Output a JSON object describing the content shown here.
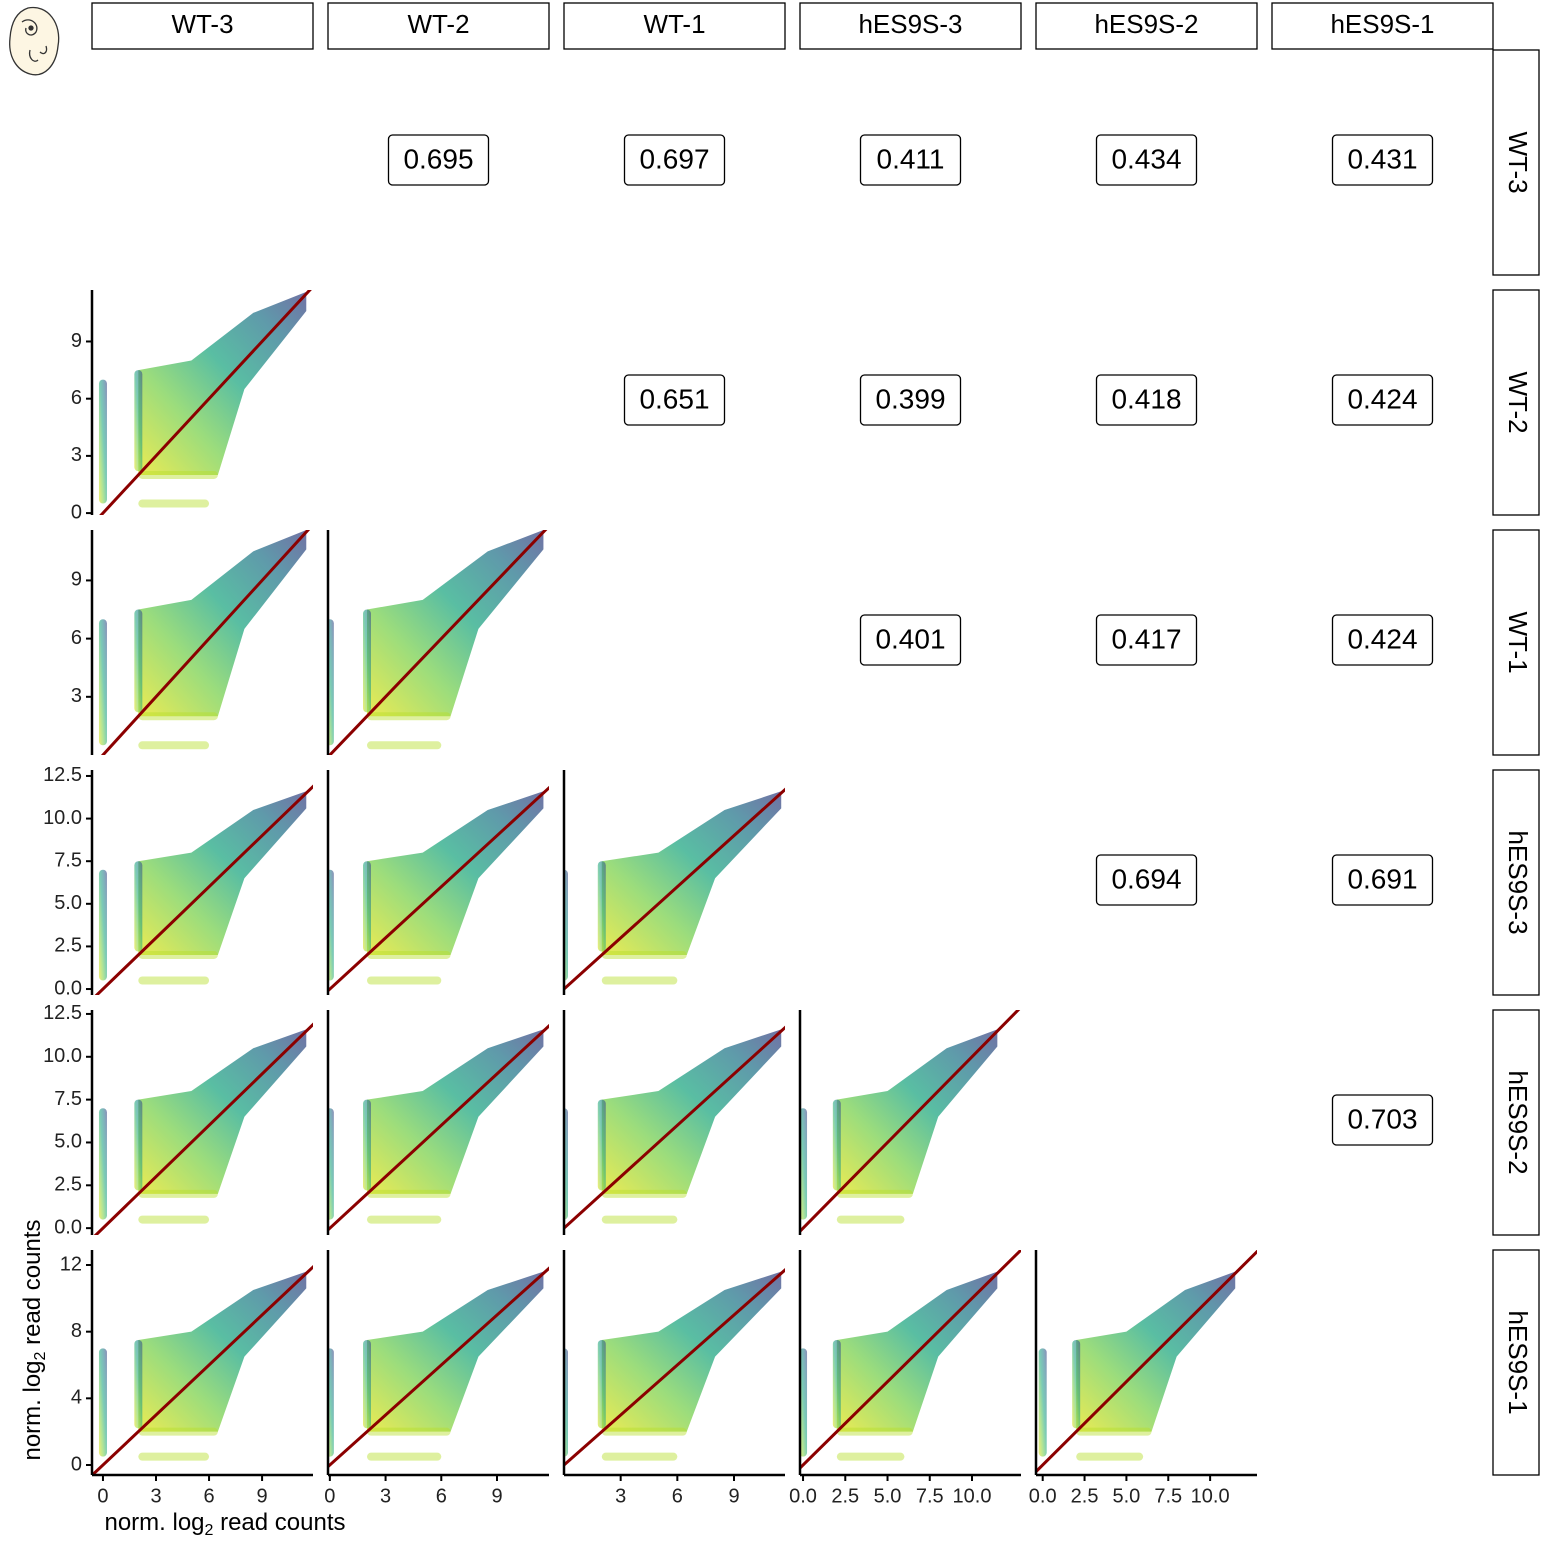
{
  "chart_data": {
    "type": "scatter_matrix",
    "samples": [
      "WT-3",
      "WT-2",
      "WT-1",
      "hES9S-3",
      "hES9S-2",
      "hES9S-1"
    ],
    "correlations": [
      [
        null,
        0.695,
        0.697,
        0.411,
        0.434,
        0.431
      ],
      [
        null,
        null,
        0.651,
        0.399,
        0.418,
        0.424
      ],
      [
        null,
        null,
        null,
        0.401,
        0.417,
        0.424
      ],
      [
        null,
        null,
        null,
        null,
        0.694,
        0.691
      ],
      [
        null,
        null,
        null,
        null,
        null,
        0.703
      ],
      [
        null,
        null,
        null,
        null,
        null,
        null
      ]
    ],
    "xlabel": {
      "text": "norm. log",
      "subscript": "2",
      "suffix": " read counts"
    },
    "ylabel": {
      "text": "norm. log",
      "subscript": "2",
      "suffix": " read counts"
    },
    "ylims": [
      null,
      [
        -0.1,
        11.7
      ],
      [
        0,
        11.6
      ],
      [
        -0.35,
        12.85
      ],
      [
        -0.4,
        12.73
      ],
      [
        -0.6,
        12.9
      ]
    ],
    "yticks": [
      null,
      [
        0,
        3,
        6,
        9
      ],
      [
        3,
        6,
        9
      ],
      [
        {
          "value": 0,
          "label": "0.0"
        },
        2.5,
        {
          "value": 5,
          "label": "5.0"
        },
        7.5,
        {
          "value": 10,
          "label": "10.0"
        },
        12.5
      ],
      [
        {
          "value": 0,
          "label": "0.0"
        },
        2.5,
        {
          "value": 5,
          "label": "5.0"
        },
        7.5,
        {
          "value": 10,
          "label": "10.0"
        },
        12.5
      ],
      [
        0,
        4,
        8,
        12
      ]
    ],
    "xlims": [
      [
        -0.62,
        11.88
      ],
      [
        -0.1,
        11.8
      ],
      [
        0,
        11.7
      ],
      [
        -0.18,
        12.9
      ],
      [
        -0.4,
        12.8
      ],
      null
    ],
    "xticks": [
      [
        0,
        3,
        6,
        9
      ],
      [
        0,
        3,
        6,
        9
      ],
      [
        3,
        6,
        9
      ],
      [
        {
          "value": 0,
          "label": "0.0"
        },
        2.5,
        {
          "value": 5,
          "label": "5.0"
        },
        7.5,
        {
          "value": 10,
          "label": "10.0"
        }
      ],
      [
        {
          "value": 0,
          "label": "0.0"
        },
        2.5,
        {
          "value": 5,
          "label": "5.0"
        },
        7.5,
        {
          "value": 10,
          "label": "10.0"
        }
      ],
      null
    ],
    "line_color": "#8b0000"
  }
}
